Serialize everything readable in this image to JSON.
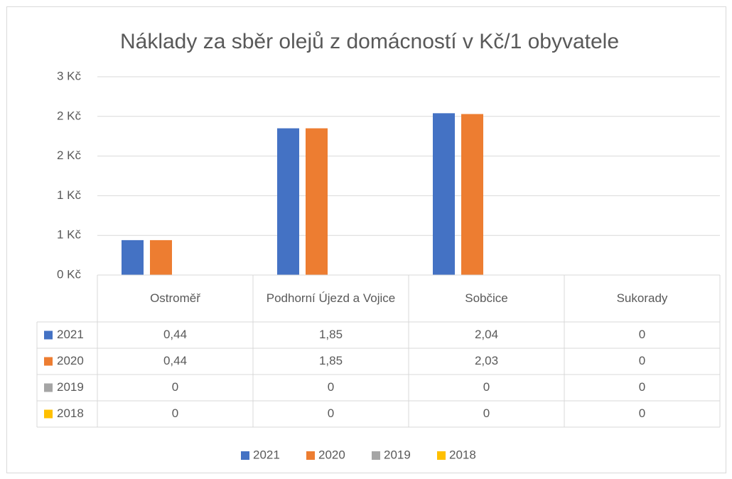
{
  "chart_data": {
    "type": "bar",
    "title": "Náklady za sběr olejů z domácností v Kč/1 obyvatele",
    "categories": [
      "Ostroměř",
      "Podhorní Újezd a Vojice",
      "Sobčice",
      "Sukorady"
    ],
    "series": [
      {
        "name": "2021",
        "color": "#4472c4",
        "values": [
          0.44,
          1.85,
          2.04,
          0
        ],
        "value_labels": [
          "0,44",
          "1,85",
          "2,04",
          "0"
        ]
      },
      {
        "name": "2020",
        "color": "#ed7d31",
        "values": [
          0.44,
          1.85,
          2.03,
          0
        ],
        "value_labels": [
          "0,44",
          "1,85",
          "2,03",
          "0"
        ]
      },
      {
        "name": "2019",
        "color": "#a5a5a5",
        "values": [
          0,
          0,
          0,
          0
        ],
        "value_labels": [
          "0",
          "0",
          "0",
          "0"
        ]
      },
      {
        "name": "2018",
        "color": "#ffc000",
        "values": [
          0,
          0,
          0,
          0
        ],
        "value_labels": [
          "0",
          "0",
          "0",
          "0"
        ]
      }
    ],
    "ylim": [
      0,
      2.5
    ],
    "yticks": [
      {
        "value": 0,
        "label": "0 Kč"
      },
      {
        "value": 0.5,
        "label": "1 Kč"
      },
      {
        "value": 1,
        "label": "1 Kč"
      },
      {
        "value": 1.5,
        "label": "2 Kč"
      },
      {
        "value": 2,
        "label": "2 Kč"
      },
      {
        "value": 2.5,
        "label": "3 Kč"
      }
    ],
    "grid": true,
    "legend": "bottom",
    "data_table": true
  }
}
